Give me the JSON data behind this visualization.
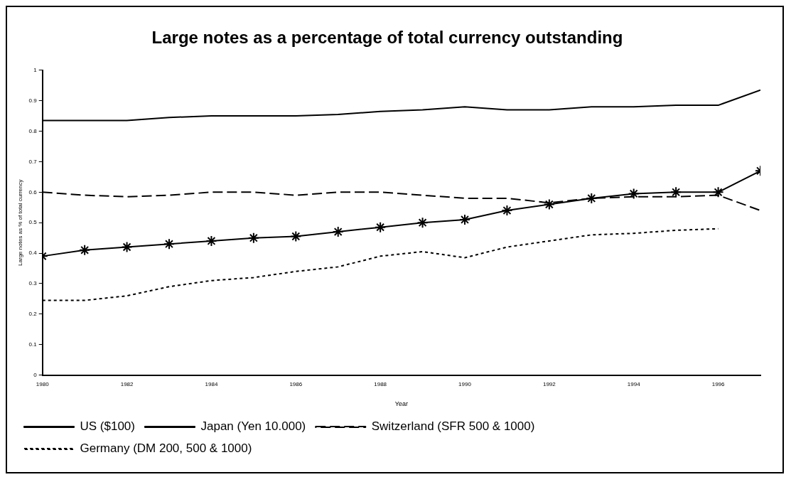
{
  "chart_data": {
    "type": "line",
    "title": "Large notes as a percentage of total currency outstanding",
    "xlabel": "Year",
    "ylabel": "Large notes as % of total currency",
    "x": [
      1980,
      1981,
      1982,
      1983,
      1984,
      1985,
      1986,
      1987,
      1988,
      1989,
      1990,
      1991,
      1992,
      1993,
      1994,
      1995,
      1996,
      1997
    ],
    "xlim": [
      1980,
      1997
    ],
    "xticks": [
      1980,
      1982,
      1984,
      1986,
      1988,
      1990,
      1992,
      1994,
      1996
    ],
    "ylim": [
      0,
      1
    ],
    "yticks": [
      0,
      0.1,
      0.2,
      0.3,
      0.4,
      0.5,
      0.6,
      0.7,
      0.8,
      0.9,
      1
    ],
    "grid": false,
    "legend": "bottom",
    "series": [
      {
        "name": "US ($100)",
        "color": "#000000",
        "marker": "cross",
        "line_style": "solid",
        "values": [
          0.39,
          0.41,
          0.42,
          0.43,
          0.44,
          0.45,
          0.455,
          0.47,
          0.485,
          0.5,
          0.51,
          0.54,
          0.56,
          0.58,
          0.595,
          0.6,
          0.6,
          0.67
        ]
      },
      {
        "name": "Japan (Yen 10.000)",
        "color": "#000000",
        "marker": "none",
        "line_style": "solid",
        "values": [
          0.835,
          0.835,
          0.835,
          0.845,
          0.85,
          0.85,
          0.85,
          0.855,
          0.865,
          0.87,
          0.88,
          0.87,
          0.87,
          0.88,
          0.88,
          0.885,
          0.885,
          0.935
        ]
      },
      {
        "name": "Switzerland (SFR 500 & 1000)",
        "color": "#000000",
        "marker": "none",
        "line_style": "dashed",
        "values": [
          0.6,
          0.59,
          0.585,
          0.59,
          0.6,
          0.6,
          0.59,
          0.6,
          0.6,
          0.59,
          0.58,
          0.58,
          0.565,
          0.58,
          0.585,
          0.585,
          0.59,
          0.54
        ]
      },
      {
        "name": "Germany (DM 200, 500 & 1000)",
        "color": "#000000",
        "marker": "none",
        "line_style": "dotted",
        "values": [
          0.245,
          0.245,
          0.26,
          0.29,
          0.31,
          0.32,
          0.34,
          0.355,
          0.39,
          0.405,
          0.385,
          0.42,
          0.44,
          0.46,
          0.465,
          0.475,
          0.48,
          null
        ]
      }
    ]
  }
}
